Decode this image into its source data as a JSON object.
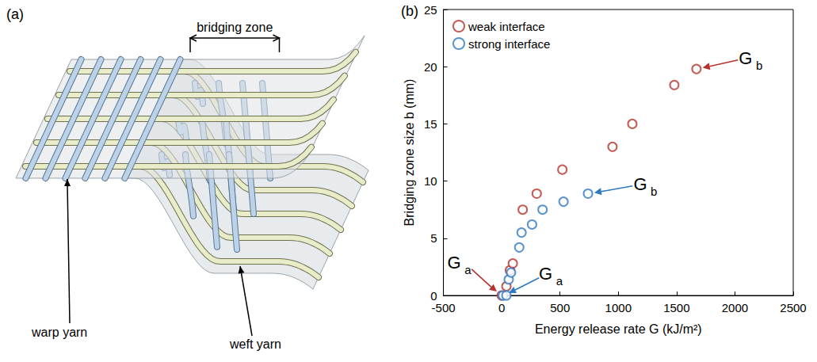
{
  "diagram": {
    "panel": "(a)",
    "labels": {
      "bridging_zone": "bridging zone",
      "warp_yarn": "warp yarn",
      "weft_yarn": "weft yarn"
    }
  },
  "chart_data": {
    "panel": "(b)",
    "type": "scatter",
    "x_label": "Energy release rate G (kJ/m²)",
    "y_label": "Bridging zone size b (mm)",
    "xlim": [
      -500,
      2500
    ],
    "xticks": [
      -500,
      0,
      500,
      1000,
      1500,
      2000,
      2500
    ],
    "ylim": [
      0,
      25
    ],
    "yticks": [
      0,
      5,
      10,
      15,
      20,
      25
    ],
    "grid": false,
    "legend": "upper left",
    "marker": "open circle",
    "series": [
      {
        "name": "weak interface",
        "color": "#b5322b",
        "x": [
          0,
          40,
          70,
          95,
          180,
          300,
          520,
          950,
          1120,
          1480,
          1670
        ],
        "values": [
          0,
          0.8,
          2.2,
          2.8,
          7.5,
          8.9,
          11,
          13,
          15,
          18.4,
          19.8
        ]
      },
      {
        "name": "strong interface",
        "color": "#2f78c4",
        "x": [
          10,
          40,
          60,
          80,
          150,
          170,
          260,
          350,
          530,
          740
        ],
        "values": [
          0,
          0,
          1.4,
          2,
          4.2,
          5.5,
          6.2,
          7.5,
          8.2,
          8.9
        ]
      }
    ],
    "annotations": [
      {
        "text": "G",
        "subscript": "a",
        "series": "weak interface",
        "x": 0,
        "y": 0
      },
      {
        "text": "G",
        "subscript": "a",
        "series": "strong interface",
        "x": 10,
        "y": 0
      },
      {
        "text": "G",
        "subscript": "b",
        "series": "weak interface",
        "x": 1670,
        "y": 19.8
      },
      {
        "text": "G",
        "subscript": "b",
        "series": "strong interface",
        "x": 740,
        "y": 8.9
      }
    ]
  }
}
